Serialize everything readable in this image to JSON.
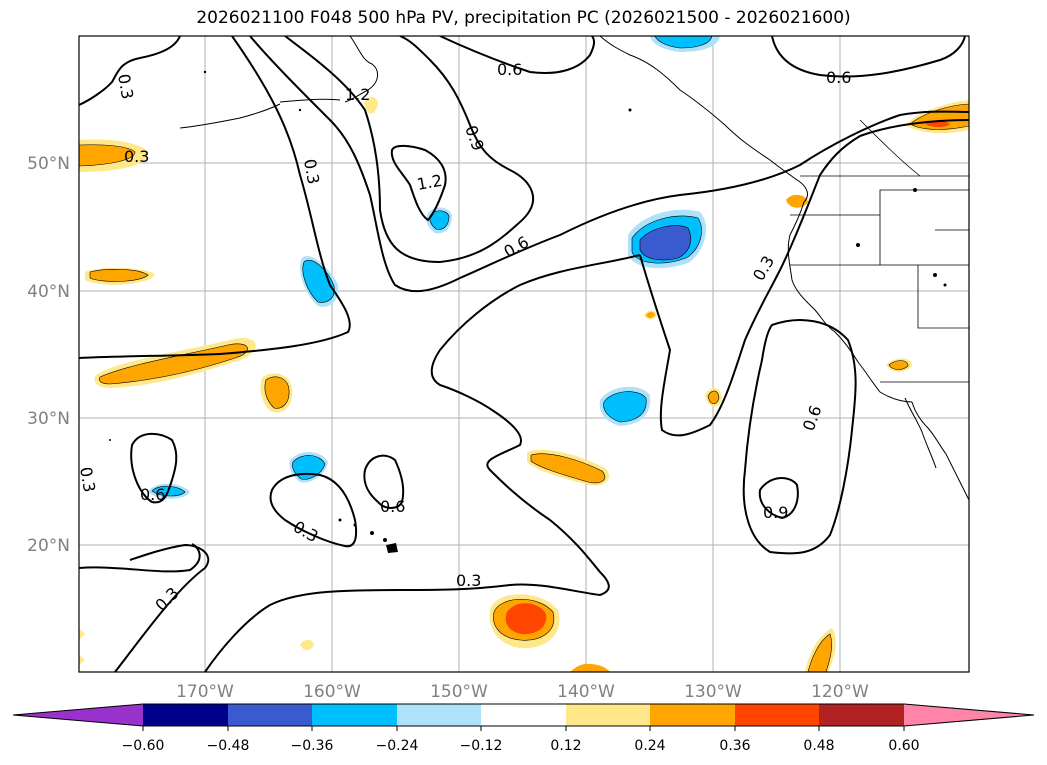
{
  "title": "2026021100 F048 500 hPa PV, precipitation PC (2026021500 - 2026021600)",
  "lat_labels": [
    "50°N",
    "40°N",
    "30°N",
    "20°N"
  ],
  "lon_labels": [
    "170°W",
    "160°W",
    "150°W",
    "140°W",
    "130°W",
    "120°W"
  ],
  "contour_labels": [
    "0.3",
    "0.3",
    "1.2",
    "0.6",
    "0.6",
    "0.9",
    "1.2",
    "0.3",
    "0.6",
    "0.3",
    "0.6",
    "0.6",
    "0.6",
    "0.3",
    "0.9",
    "0.3",
    "0.3",
    "0.3"
  ],
  "colorbar": {
    "ticks": [
      "−0.60",
      "−0.48",
      "−0.36",
      "−0.24",
      "−0.12",
      "0.12",
      "0.24",
      "0.36",
      "0.48",
      "0.60"
    ],
    "colors": [
      "#9932cc",
      "#00008b",
      "#3a5bcf",
      "#00bfff",
      "#aee2fa",
      "#ffffff",
      "#ffe88a",
      "#ffa500",
      "#ff4500",
      "#b22222",
      "#ff85a8"
    ]
  }
}
